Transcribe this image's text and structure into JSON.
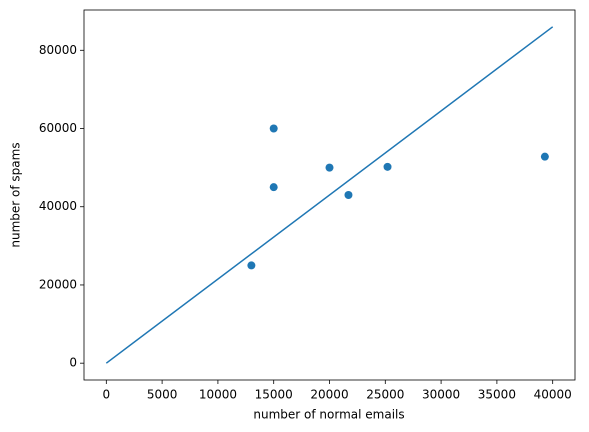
{
  "chart_data": {
    "type": "scatter",
    "xlabel": "number of normal emails",
    "ylabel": "number of spams",
    "series": [
      {
        "type": "scatter",
        "color": "#1f77b4",
        "x": [
          13000,
          15000,
          15000,
          20000,
          21700,
          25200,
          39300
        ],
        "values": [
          25000,
          45000,
          60000,
          50000,
          43000,
          50200,
          52800
        ]
      },
      {
        "type": "line",
        "color": "#1f77b4",
        "x": [
          0,
          40000
        ],
        "values": [
          0,
          86000
        ]
      }
    ],
    "xlim": [
      -2000,
      42000
    ],
    "ylim": [
      -4300,
      90300
    ],
    "xticks": [
      0,
      5000,
      10000,
      15000,
      20000,
      25000,
      30000,
      35000,
      40000
    ],
    "yticks": [
      0,
      20000,
      40000,
      60000,
      80000
    ],
    "grid": false
  }
}
